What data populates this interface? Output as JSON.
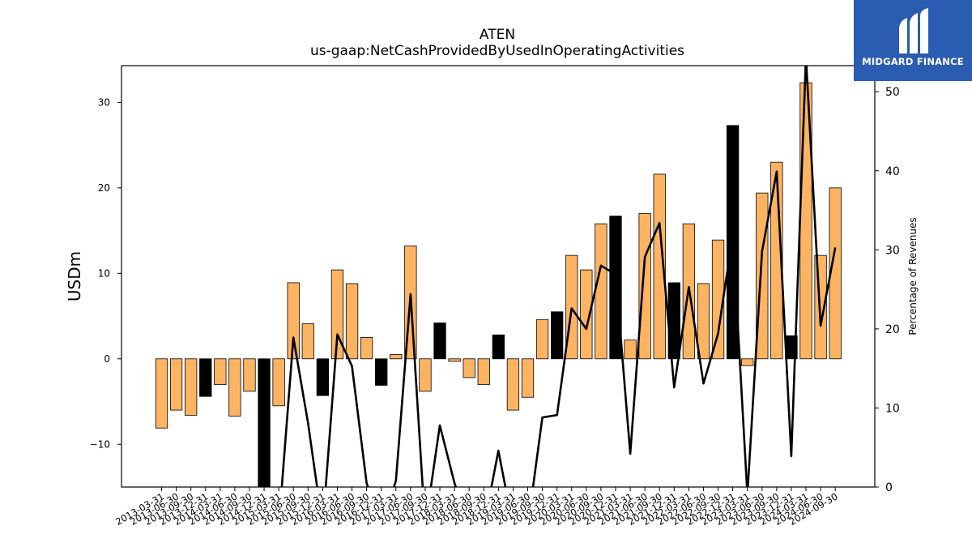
{
  "chart_data": {
    "type": "bar",
    "title": "ATEN",
    "subtitle": "us-gaap:NetCashProvidedByUsedInOperatingActivities",
    "ylabel": "USDm",
    "y2label": "Percentage of Revenues",
    "ylim": [
      -15,
      34.3
    ],
    "y2lim": [
      0,
      53.3
    ],
    "yticks": [
      -10,
      0,
      10,
      20,
      30
    ],
    "y2ticks": [
      0,
      10,
      20,
      30,
      40,
      50
    ],
    "categories": [
      "2013-03-31",
      "2013-06-30",
      "2013-09-30",
      "2013-12-31",
      "2014-03-31",
      "2014-06-30",
      "2014-09-30",
      "2014-12-31",
      "2015-03-31",
      "2015-06-30",
      "2015-09-30",
      "2015-12-31",
      "2016-03-31",
      "2016-06-30",
      "2016-09-30",
      "2016-12-31",
      "2017-03-31",
      "2017-06-30",
      "2017-09-30",
      "2017-12-31",
      "2018-03-31",
      "2018-06-30",
      "2018-09-30",
      "2018-12-31",
      "2019-03-31",
      "2019-06-30",
      "2019-09-30",
      "2019-12-31",
      "2020-03-31",
      "2020-06-30",
      "2020-09-30",
      "2020-12-31",
      "2021-03-31",
      "2021-06-30",
      "2021-09-30",
      "2021-12-31",
      "2022-03-31",
      "2022-06-30",
      "2022-09-30",
      "2022-12-31",
      "2023-03-31",
      "2023-06-30",
      "2023-09-30",
      "2023-12-31",
      "2024-03-31",
      "2024-06-30",
      "2024-09-30"
    ],
    "series": [
      {
        "kind": "bar",
        "values": [
          -8.1,
          -6.0,
          -6.6,
          -4.4,
          -3.0,
          -6.7,
          -3.8,
          -15.5,
          -5.5,
          8.9,
          4.1,
          -4.3,
          10.4,
          8.8,
          2.5,
          -3.1,
          0.5,
          13.2,
          -3.8,
          4.2,
          -0.3,
          -2.2,
          -3.0,
          2.8,
          -6.0,
          -4.5,
          4.6,
          5.5,
          12.1,
          10.4,
          15.8,
          16.7,
          2.2,
          17.0,
          21.6,
          8.9,
          15.8,
          8.8,
          13.9,
          27.3,
          -0.8,
          19.4,
          23.0,
          2.7,
          32.3,
          12.1,
          20.0
        ],
        "highlight": [
          false,
          false,
          false,
          true,
          false,
          false,
          false,
          true,
          false,
          false,
          false,
          true,
          false,
          false,
          false,
          true,
          false,
          false,
          false,
          true,
          false,
          false,
          false,
          true,
          false,
          false,
          false,
          true,
          false,
          false,
          false,
          true,
          false,
          false,
          false,
          true,
          false,
          false,
          false,
          true,
          false,
          false,
          false,
          true,
          false,
          false,
          false
        ],
        "color": "#fdb462",
        "highlight_color": "#000000"
      },
      {
        "kind": "line",
        "axis": "right",
        "values": [
          -5,
          -5,
          -5,
          -5,
          -5,
          -5,
          -5,
          -5,
          -5,
          18.9,
          8.1,
          -5,
          19.3,
          15.3,
          0.5,
          -5,
          0.8,
          24.4,
          -5,
          7.8,
          0.5,
          -5,
          -5,
          4.6,
          -5,
          -5,
          8.8,
          9.1,
          22.6,
          20.0,
          28.0,
          26.9,
          4.2,
          29.1,
          33.4,
          12.6,
          25.3,
          13.1,
          19.4,
          31.9,
          -1.0,
          29.8,
          39.9,
          3.9,
          54.4,
          20.4,
          30.3
        ],
        "color": "#000000"
      }
    ]
  },
  "logo": {
    "text": "MIDGARD FINANCE",
    "background": "#2a5cb1"
  }
}
